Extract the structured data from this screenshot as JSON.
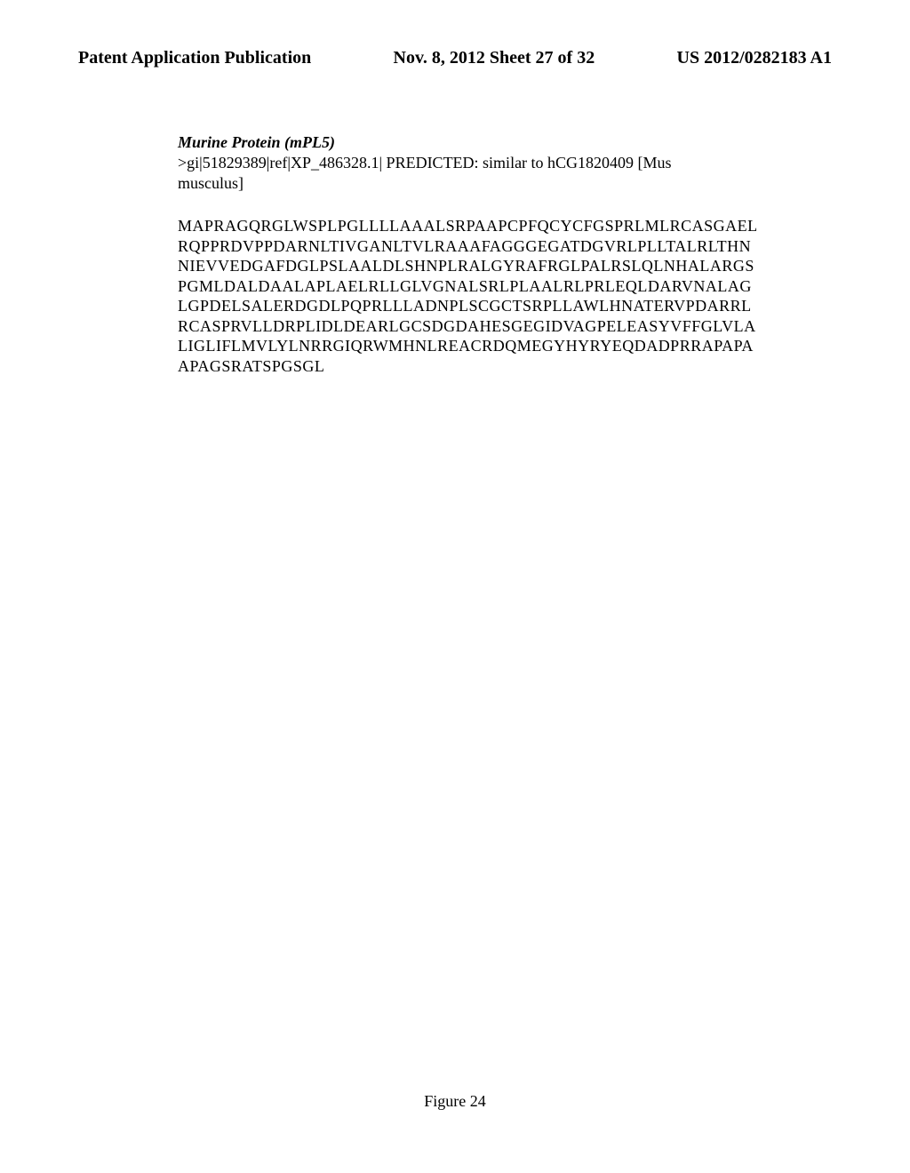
{
  "header": {
    "left": "Patent Application Publication",
    "center": "Nov. 8, 2012   Sheet 27 of 32",
    "right": "US 2012/0282183 A1"
  },
  "protein": {
    "title": "Murine Protein (mPL5)",
    "accession_line1": ">gi|51829389|ref|XP_486328.1| PREDICTED: similar to hCG1820409 [Mus",
    "accession_line2": "musculus]"
  },
  "sequence": {
    "line1": "MAPRAGQRGLWSPLPGLLLLAAALSRPAAPCPFQCYCFGSPRLMLRCASGAEL",
    "line2": "RQPPRDVPPDARNLTIVGANLTVLRAAAFAGGGEGATDGVRLPLLTALRLTHN",
    "line3": "NIEVVEDGAFDGLPSLAALDLSHNPLRALGYRAFRGLPALRSLQLNHALARGS",
    "line4": "PGMLDALDAALAPLAELRLLGLVGNALSRLPLAALRLPRLEQLDARVNALAG",
    "line5": "LGPDELSALERDGDLPQPRLLLADNPLSCGCTSRPLLAWLHNATERVPDARRL",
    "line6": "RCASPRVLLDRPLIDLDEARLGCSDGDAHESGEGIDVAGPELEASYVFFGLVLA",
    "line7": "LIGLIFLMVLYLNRRGIQRWMHNLREACRDQMEGYHYRYEQDADPRRAPAPA",
    "line8": "APAGSRATSPGSGL"
  },
  "figure_label": "Figure 24"
}
